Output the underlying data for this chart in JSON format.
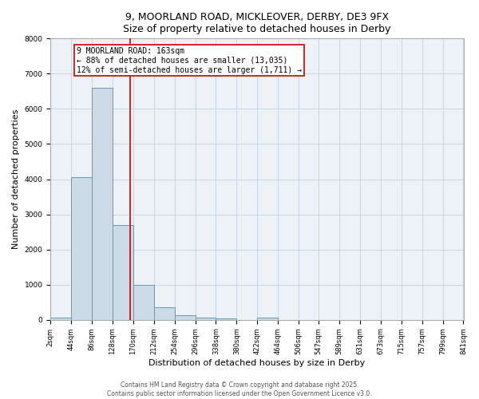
{
  "title_line1": "9, MOORLAND ROAD, MICKLEOVER, DERBY, DE3 9FX",
  "title_line2": "Size of property relative to detached houses in Derby",
  "xlabel": "Distribution of detached houses by size in Derby",
  "ylabel": "Number of detached properties",
  "bar_edges": [
    2,
    44,
    86,
    128,
    170,
    212,
    254,
    296,
    338,
    380,
    422,
    464,
    506,
    547,
    589,
    631,
    673,
    715,
    757,
    799,
    841
  ],
  "bar_heights": [
    70,
    4050,
    6600,
    2700,
    990,
    350,
    130,
    60,
    30,
    5,
    60,
    0,
    0,
    0,
    0,
    0,
    0,
    0,
    0,
    0
  ],
  "bar_color": "#ccdae8",
  "bar_edge_color": "#6699bb",
  "property_line_x": 163,
  "annotation_line1": "9 MOORLAND ROAD: 163sqm",
  "annotation_line2": "← 88% of detached houses are smaller (13,035)",
  "annotation_line3": "12% of semi-detached houses are larger (1,711) →",
  "annotation_box_color": "#ffffff",
  "annotation_border_color": "#cc0000",
  "vline_color": "#cc0000",
  "ylim": [
    0,
    8000
  ],
  "yticks": [
    0,
    1000,
    2000,
    3000,
    4000,
    5000,
    6000,
    7000,
    8000
  ],
  "tick_labels": [
    "2sqm",
    "44sqm",
    "86sqm",
    "128sqm",
    "170sqm",
    "212sqm",
    "254sqm",
    "296sqm",
    "338sqm",
    "380sqm",
    "422sqm",
    "464sqm",
    "506sqm",
    "547sqm",
    "589sqm",
    "631sqm",
    "673sqm",
    "715sqm",
    "757sqm",
    "799sqm",
    "841sqm"
  ],
  "footer_line1": "Contains HM Land Registry data © Crown copyright and database right 2025.",
  "footer_line2": "Contains public sector information licensed under the Open Government Licence v3.0.",
  "grid_color": "#c8d8e8",
  "background_color": "#edf2f7",
  "title_fontsize": 9,
  "ylabel_fontsize": 8,
  "xlabel_fontsize": 8,
  "tick_fontsize": 6,
  "annotation_fontsize": 7,
  "footer_fontsize": 5.5
}
